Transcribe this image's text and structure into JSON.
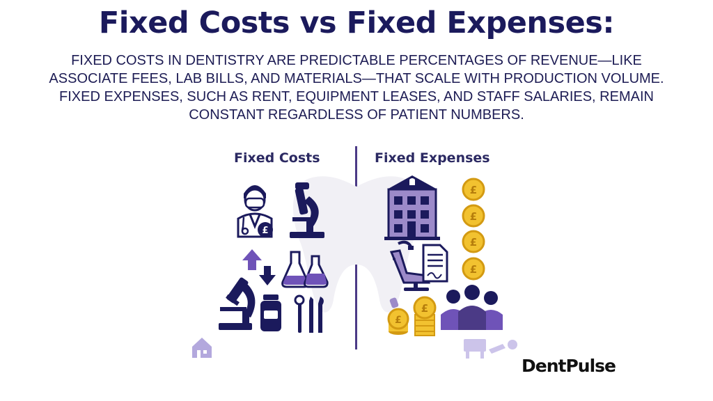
{
  "header": {
    "title": "Fixed Costs vs Fixed Expenses:",
    "subtitle": "FIXED COSTS IN DENTISTRY ARE PREDICTABLE PERCENTAGES OF REVENUE—LIKE ASSOCIATE FEES, LAB BILLS, AND MATERIALS—THAT SCALE WITH PRODUCTION VOLUME. FIXED EXPENSES, SUCH AS RENT, EQUIPMENT LEASES, AND STAFF SALARIES, REMAIN CONSTANT REGARDLESS OF PATIENT NUMBERS."
  },
  "columns": {
    "left_heading": "Fixed Costs",
    "right_heading": "Fixed Expenses"
  },
  "currency_symbol": "£",
  "brand": {
    "logo_text": "DentPulse"
  },
  "colors": {
    "navy": "#1b1a5c",
    "purple": "#4b3a86",
    "light_purple": "#9c8ac9",
    "gold": "#f2c230",
    "gold_dark": "#d39a12"
  },
  "icons": [
    "dentist-icon",
    "microscope-icon",
    "arrow-up-icon",
    "arrow-down-icon",
    "flasks-icon",
    "medicine-bottle-icon",
    "dental-tools-icon",
    "building-icon",
    "coin-stack-icon",
    "dental-chair-icon",
    "contract-icon",
    "staff-icon",
    "small-house-icon"
  ]
}
